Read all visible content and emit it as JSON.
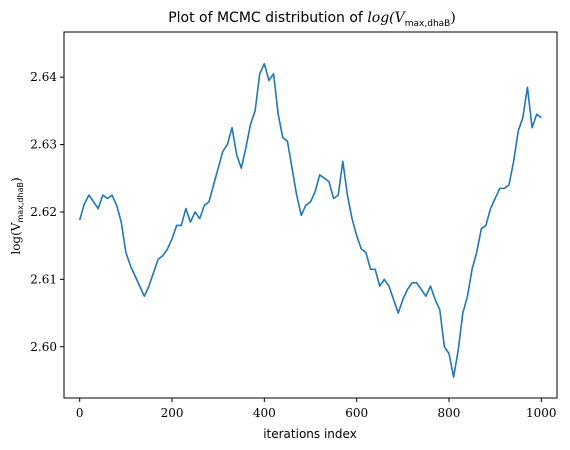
{
  "chart_data": {
    "type": "line",
    "title_prefix": "Plot of MCMC distribution of ",
    "title_math": "log(V",
    "title_sub": "max,dhaB",
    "title_suffix": ")",
    "xlabel": "iterations index",
    "ylabel_main": "log(V",
    "ylabel_sub": "max,dhaB",
    "ylabel_suffix": ")",
    "xlim": [
      -34,
      1034
    ],
    "ylim": [
      2.5924,
      2.6467
    ],
    "xticks": [
      0,
      200,
      400,
      600,
      800,
      1000
    ],
    "xtick_labels": [
      "0",
      "200",
      "400",
      "600",
      "800",
      "1000"
    ],
    "yticks": [
      2.6,
      2.61,
      2.62,
      2.63,
      2.64
    ],
    "ytick_labels": [
      "2.60",
      "2.61",
      "2.62",
      "2.63",
      "2.64"
    ],
    "grid": false,
    "line_color": "#1f77b4",
    "series": [
      {
        "x": [
          0,
          10,
          20,
          30,
          40,
          50,
          60,
          70,
          80,
          90,
          100,
          110,
          120,
          130,
          140,
          150,
          160,
          170,
          180,
          190,
          200,
          210,
          220,
          230,
          240,
          250,
          260,
          270,
          280,
          290,
          300,
          310,
          320,
          330,
          340,
          350,
          360,
          370,
          380,
          390,
          400,
          410,
          420,
          430,
          440,
          450,
          460,
          470,
          480,
          490,
          500,
          510,
          520,
          530,
          540,
          550,
          560,
          570,
          580,
          590,
          600,
          610,
          620,
          630,
          640,
          650,
          660,
          670,
          680,
          690,
          700,
          710,
          720,
          730,
          740,
          750,
          760,
          770,
          780,
          790,
          800,
          810,
          820,
          830,
          840,
          850,
          860,
          870,
          880,
          890,
          900,
          910,
          920,
          930,
          940,
          950,
          960,
          970,
          980,
          990,
          1000
        ],
        "y": [
          2.6188,
          2.6212,
          2.6225,
          2.6215,
          2.6205,
          2.6225,
          2.622,
          2.6225,
          2.621,
          2.6185,
          2.614,
          2.612,
          2.6105,
          2.609,
          2.6075,
          2.609,
          2.611,
          2.613,
          2.6135,
          2.6145,
          2.616,
          2.618,
          2.618,
          2.6205,
          2.6185,
          2.62,
          2.619,
          2.621,
          2.6215,
          2.624,
          2.6265,
          2.629,
          2.63,
          2.6325,
          2.6285,
          2.6265,
          2.6295,
          2.633,
          2.635,
          2.6405,
          2.642,
          2.6395,
          2.6405,
          2.6345,
          2.631,
          2.6305,
          2.6265,
          2.6225,
          2.6195,
          2.621,
          2.6215,
          2.623,
          2.6255,
          2.625,
          2.6245,
          2.622,
          2.6225,
          2.6275,
          2.6225,
          2.619,
          2.6165,
          2.6145,
          2.614,
          2.6115,
          2.6115,
          2.609,
          2.61,
          2.609,
          2.607,
          2.605,
          2.607,
          2.6085,
          2.6095,
          2.6095,
          2.6085,
          2.6075,
          2.609,
          2.607,
          2.6055,
          2.6,
          2.599,
          2.5955,
          2.5995,
          2.605,
          2.6075,
          2.6115,
          2.614,
          2.6175,
          2.618,
          2.6205,
          2.622,
          2.6235,
          2.6235,
          2.624,
          2.6275,
          2.632,
          2.634,
          2.6385,
          2.6325,
          2.6345,
          2.634
        ]
      }
    ]
  }
}
